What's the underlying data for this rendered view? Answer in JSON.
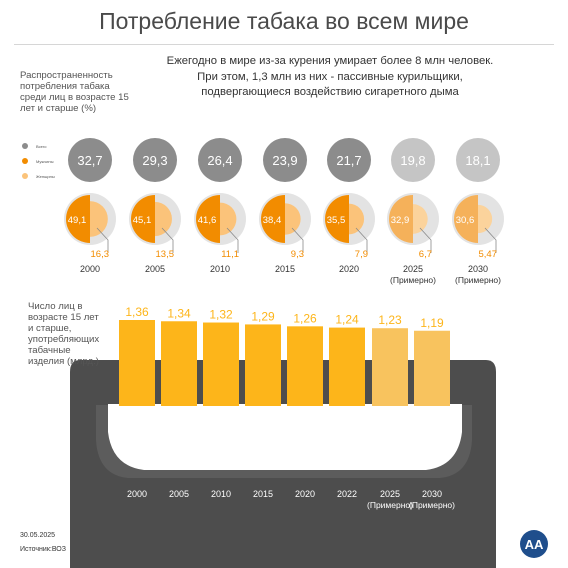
{
  "header": {
    "title": "Потребление табака во всем мире",
    "subtitle_lines": [
      "Ежегодно в мире из-за курения умирает более 8 млн человек.",
      "При этом, 1,3 млн из них - пассивные курильщики,",
      "подвергающиеся воздействию сигаретного дыма"
    ]
  },
  "prevalence": {
    "label": "Распространенность потребления табака среди лиц в возрасте 15 лет и старше (%)",
    "legend": [
      {
        "label": "Всего",
        "color": "#8c8c8c"
      },
      {
        "label": "Мужчины",
        "color": "#f28c00"
      },
      {
        "label": "Женщины",
        "color": "#fbc37a"
      }
    ]
  },
  "footer": {
    "date": "30.05.2025",
    "source": "Источник:ВОЗ",
    "logo_text": "AA"
  },
  "chart_data": [
    {
      "type": "pie",
      "categories": [
        "2000",
        "2005",
        "2010",
        "2015",
        "2020",
        "2025 (Примерно)",
        "2030 (Примерно)"
      ],
      "series": [
        {
          "name": "Всего",
          "values": [
            32.7,
            29.3,
            26.4,
            23.9,
            21.7,
            19.8,
            18.1
          ]
        },
        {
          "name": "Мужчины",
          "values": [
            49.1,
            45.1,
            41.6,
            38.4,
            35.5,
            32.9,
            30.6
          ]
        },
        {
          "name": "Женщины",
          "values": [
            16.3,
            13.5,
            11.1,
            9.3,
            7.9,
            6.7,
            5.47
          ]
        }
      ],
      "value_labels": {
        "total": [
          "32,7",
          "29,3",
          "26,4",
          "23,9",
          "21,7",
          "19,8",
          "18,1"
        ],
        "men": [
          "49,1",
          "45,1",
          "41,6",
          "38,4",
          "35,5",
          "32,9",
          "30,6"
        ],
        "women": [
          "16,3",
          "13,5",
          "11,1",
          "9,3",
          "7,9",
          "6,7",
          "5,47"
        ]
      },
      "projected": [
        false,
        false,
        false,
        false,
        false,
        true,
        true
      ],
      "colors": {
        "total": "#8c8c8c",
        "men": "#f28c00",
        "women": "#fbc37a",
        "track": "#e3e3e3",
        "total_projected": "#c5c5c5",
        "men_projected": "#f5b15a",
        "women_projected": "#fbd39c"
      }
    },
    {
      "type": "bar",
      "title": "Число лиц в возрасте 15 лет и старше, употребляющих табачные изделия (млрд.)",
      "categories": [
        "2000",
        "2005",
        "2010",
        "2015",
        "2020",
        "2022",
        "2025 (Примерно)",
        "2030 (Примерно)"
      ],
      "values": [
        1.36,
        1.34,
        1.32,
        1.29,
        1.26,
        1.24,
        1.23,
        1.19
      ],
      "value_labels": [
        "1,36",
        "1,34",
        "1,32",
        "1,29",
        "1,26",
        "1,24",
        "1,23",
        "1,19"
      ],
      "projected": [
        false,
        false,
        false,
        false,
        false,
        false,
        true,
        true
      ],
      "colors": {
        "actual": "#fdb51a",
        "projected": "#f8c35e",
        "pack": "#4d4d4d"
      }
    }
  ]
}
